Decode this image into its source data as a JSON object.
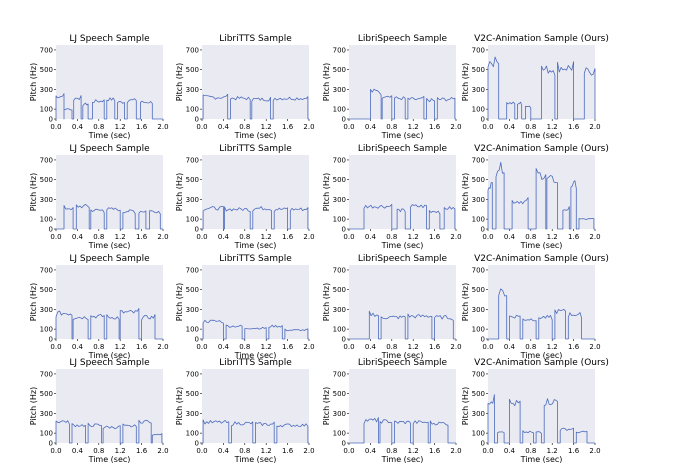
{
  "chart_data": {
    "type": "line",
    "layout": "4x4 grid of pitch contour subplots",
    "xlabel": "Time (sec)",
    "ylabel": "Pitch (Hz)",
    "xlim": [
      0.0,
      2.0
    ],
    "ylim": [
      0,
      750
    ],
    "xticks": [
      "0.0",
      "0.4",
      "0.8",
      "1.2",
      "1.6",
      "2.0"
    ],
    "yticks": [
      "0",
      "100",
      "300",
      "500",
      "700"
    ],
    "grid": false,
    "colors": {
      "line": "#4b6bbd",
      "axes_bg": "#eaeaf2"
    },
    "column_titles": [
      "LJ Speech Sample",
      "LibriTTS Sample",
      "LibriSpeech Sample",
      "V2C-Animation Sample (Ours)"
    ],
    "panels": [
      {
        "title": "LJ Speech Sample",
        "segments": [
          [
            0.0,
            0.15,
            230
          ],
          [
            0.15,
            0.3,
            100
          ],
          [
            0.33,
            0.47,
            210
          ],
          [
            0.5,
            0.6,
            150
          ],
          [
            0.68,
            0.9,
            180
          ],
          [
            0.95,
            1.1,
            200
          ],
          [
            1.15,
            1.28,
            170
          ],
          [
            1.33,
            1.5,
            190
          ],
          [
            1.58,
            1.8,
            170
          ]
        ]
      },
      {
        "title": "LibriTTS Sample",
        "segments": [
          [
            0.02,
            0.48,
            220
          ],
          [
            0.53,
            0.9,
            210
          ],
          [
            0.93,
            1.28,
            200
          ],
          [
            1.33,
            1.98,
            210
          ]
        ]
      },
      {
        "title": "LibriSpeech Sample",
        "segments": [
          [
            0.4,
            0.6,
            280
          ],
          [
            0.62,
            0.8,
            240
          ],
          [
            0.85,
            1.05,
            210
          ],
          [
            1.1,
            1.4,
            200
          ],
          [
            1.45,
            1.6,
            190
          ],
          [
            1.65,
            1.98,
            200
          ]
        ]
      },
      {
        "title": "V2C-Animation Sample (Ours)",
        "segments": [
          [
            0.0,
            0.2,
            580
          ],
          [
            0.35,
            0.5,
            160
          ],
          [
            0.55,
            0.63,
            160
          ],
          [
            0.7,
            0.8,
            130
          ],
          [
            1.0,
            1.25,
            500
          ],
          [
            1.3,
            1.6,
            520
          ],
          [
            1.8,
            2.0,
            480
          ]
        ]
      },
      {
        "title": "LJ Speech Sample",
        "segments": [
          [
            0.15,
            0.32,
            210
          ],
          [
            0.38,
            0.62,
            230
          ],
          [
            0.65,
            0.9,
            190
          ],
          [
            0.95,
            1.2,
            200
          ],
          [
            1.25,
            1.48,
            180
          ],
          [
            1.55,
            1.68,
            180
          ],
          [
            1.75,
            1.95,
            180
          ]
        ]
      },
      {
        "title": "LibriTTS Sample",
        "segments": [
          [
            0.02,
            0.4,
            210
          ],
          [
            0.42,
            0.9,
            200
          ],
          [
            0.95,
            1.3,
            210
          ],
          [
            1.35,
            1.6,
            200
          ],
          [
            1.65,
            1.98,
            200
          ]
        ]
      },
      {
        "title": "LibriSpeech Sample",
        "segments": [
          [
            0.28,
            0.8,
            230
          ],
          [
            0.9,
            1.05,
            190
          ],
          [
            1.15,
            1.45,
            230
          ],
          [
            1.5,
            1.7,
            180
          ],
          [
            1.78,
            1.98,
            210
          ]
        ]
      },
      {
        "title": "V2C-Animation Sample (Ours)",
        "segments": [
          [
            0.0,
            0.08,
            450
          ],
          [
            0.15,
            0.3,
            620
          ],
          [
            0.45,
            0.75,
            280
          ],
          [
            0.9,
            1.08,
            550
          ],
          [
            1.1,
            1.3,
            500
          ],
          [
            1.4,
            1.52,
            200
          ],
          [
            1.55,
            1.65,
            450
          ],
          [
            1.7,
            1.98,
            100
          ]
        ]
      },
      {
        "title": "LJ Speech Sample",
        "segments": [
          [
            0.0,
            0.3,
            260
          ],
          [
            0.32,
            0.6,
            220
          ],
          [
            0.65,
            0.9,
            230
          ],
          [
            0.95,
            1.18,
            220
          ],
          [
            1.2,
            1.55,
            270
          ],
          [
            1.6,
            1.85,
            220
          ]
        ]
      },
      {
        "title": "LibriTTS Sample",
        "segments": [
          [
            0.02,
            0.4,
            180
          ],
          [
            0.45,
            0.75,
            130
          ],
          [
            0.8,
            1.2,
            110
          ],
          [
            1.25,
            1.5,
            130
          ],
          [
            1.55,
            1.98,
            90
          ]
        ]
      },
      {
        "title": "LibriSpeech Sample",
        "segments": [
          [
            0.38,
            0.55,
            250
          ],
          [
            0.6,
            1.05,
            220
          ],
          [
            1.1,
            1.55,
            230
          ],
          [
            1.6,
            1.95,
            220
          ]
        ]
      },
      {
        "title": "V2C-Animation Sample (Ours)",
        "segments": [
          [
            0.2,
            0.35,
            470
          ],
          [
            0.4,
            0.6,
            230
          ],
          [
            0.65,
            0.9,
            200
          ],
          [
            0.95,
            1.2,
            220
          ],
          [
            1.25,
            1.45,
            280
          ],
          [
            1.5,
            1.75,
            250
          ]
        ]
      },
      {
        "title": "LJ Speech Sample",
        "segments": [
          [
            0.0,
            0.25,
            220
          ],
          [
            0.3,
            0.55,
            180
          ],
          [
            0.6,
            0.85,
            180
          ],
          [
            0.88,
            1.2,
            160
          ],
          [
            1.25,
            1.5,
            170
          ],
          [
            1.55,
            1.78,
            220
          ],
          [
            1.8,
            1.98,
            90
          ]
        ]
      },
      {
        "title": "LibriTTS Sample",
        "segments": [
          [
            0.02,
            0.5,
            210
          ],
          [
            0.55,
            0.95,
            200
          ],
          [
            1.0,
            1.35,
            190
          ],
          [
            1.4,
            1.98,
            180
          ]
        ]
      },
      {
        "title": "LibriSpeech Sample",
        "segments": [
          [
            0.28,
            0.55,
            230
          ],
          [
            0.58,
            0.8,
            220
          ],
          [
            0.85,
            1.15,
            210
          ],
          [
            1.2,
            1.48,
            210
          ],
          [
            1.52,
            1.85,
            200
          ]
        ]
      },
      {
        "title": "V2C-Animation Sample (Ours)",
        "segments": [
          [
            0.0,
            0.12,
            430
          ],
          [
            0.18,
            0.3,
            120
          ],
          [
            0.4,
            0.6,
            400
          ],
          [
            0.65,
            0.85,
            110
          ],
          [
            0.9,
            1.0,
            110
          ],
          [
            1.05,
            1.3,
            420
          ],
          [
            1.35,
            1.6,
            140
          ],
          [
            1.65,
            1.85,
            110
          ]
        ]
      }
    ]
  }
}
